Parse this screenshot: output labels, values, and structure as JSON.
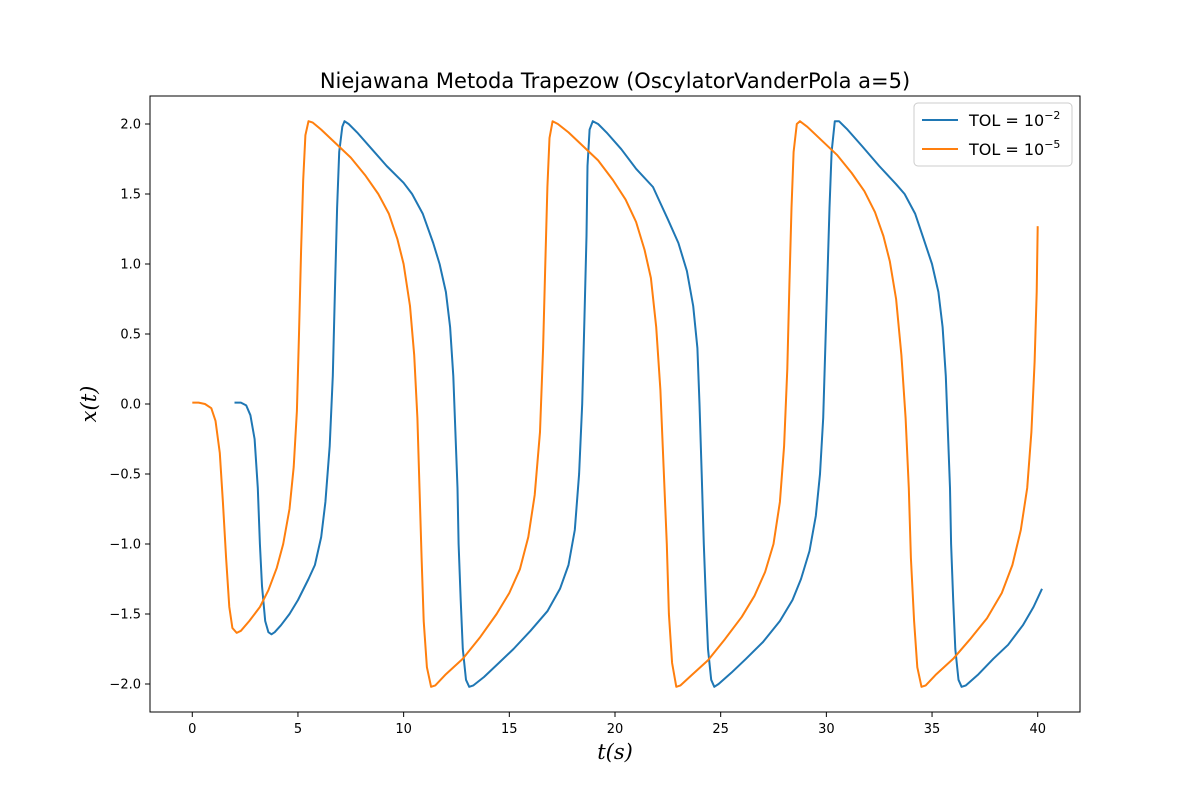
{
  "chart_data": {
    "type": "line",
    "title": "Niejawana Metoda Trapezow (OscylatorVanderPola a=5)",
    "xlabel": "t(s)",
    "ylabel": "x(t)",
    "xlim": [
      -2,
      42
    ],
    "ylim": [
      -2.2,
      2.2
    ],
    "xticks": [
      0,
      5,
      10,
      15,
      20,
      25,
      30,
      35,
      40
    ],
    "yticks": [
      -2.0,
      -1.5,
      -1.0,
      -0.5,
      0.0,
      0.5,
      1.0,
      1.5,
      2.0
    ],
    "xtick_labels": [
      "0",
      "5",
      "10",
      "15",
      "20",
      "25",
      "30",
      "35",
      "40"
    ],
    "ytick_labels": [
      "−2.0",
      "−1.5",
      "−1.0",
      "−0.5",
      "0.0",
      "0.5",
      "1.0",
      "1.5",
      "2.0"
    ],
    "grid": false,
    "legend_position": "top-right",
    "series": [
      {
        "name": "TOL = 10^-2",
        "name_base": "TOL = 10",
        "name_exp": "−2",
        "color": "#1f77b4",
        "points": [
          [
            2.0,
            0.01
          ],
          [
            2.3,
            0.01
          ],
          [
            2.55,
            -0.01
          ],
          [
            2.75,
            -0.08
          ],
          [
            2.95,
            -0.25
          ],
          [
            3.1,
            -0.6
          ],
          [
            3.2,
            -1.0
          ],
          [
            3.3,
            -1.3
          ],
          [
            3.45,
            -1.55
          ],
          [
            3.6,
            -1.63
          ],
          [
            3.75,
            -1.645
          ],
          [
            3.9,
            -1.63
          ],
          [
            4.2,
            -1.58
          ],
          [
            4.6,
            -1.5
          ],
          [
            5.0,
            -1.4
          ],
          [
            5.5,
            -1.25
          ],
          [
            5.8,
            -1.15
          ],
          [
            6.1,
            -0.95
          ],
          [
            6.3,
            -0.7
          ],
          [
            6.5,
            -0.3
          ],
          [
            6.65,
            0.2
          ],
          [
            6.75,
            0.8
          ],
          [
            6.85,
            1.4
          ],
          [
            6.95,
            1.8
          ],
          [
            7.1,
            1.98
          ],
          [
            7.2,
            2.02
          ],
          [
            7.4,
            2.0
          ],
          [
            7.8,
            1.94
          ],
          [
            8.5,
            1.82
          ],
          [
            9.2,
            1.7
          ],
          [
            10.0,
            1.58
          ],
          [
            10.4,
            1.5
          ],
          [
            10.9,
            1.36
          ],
          [
            11.4,
            1.15
          ],
          [
            11.7,
            1.0
          ],
          [
            12.0,
            0.8
          ],
          [
            12.2,
            0.55
          ],
          [
            12.35,
            0.2
          ],
          [
            12.45,
            -0.2
          ],
          [
            12.55,
            -0.6
          ],
          [
            12.6,
            -1.0
          ],
          [
            12.7,
            -1.4
          ],
          [
            12.8,
            -1.75
          ],
          [
            12.95,
            -1.97
          ],
          [
            13.1,
            -2.02
          ],
          [
            13.3,
            -2.01
          ],
          [
            13.8,
            -1.95
          ],
          [
            14.5,
            -1.85
          ],
          [
            15.2,
            -1.75
          ],
          [
            16.0,
            -1.62
          ],
          [
            16.8,
            -1.48
          ],
          [
            17.4,
            -1.32
          ],
          [
            17.8,
            -1.15
          ],
          [
            18.1,
            -0.9
          ],
          [
            18.3,
            -0.5
          ],
          [
            18.45,
            0.0
          ],
          [
            18.55,
            0.6
          ],
          [
            18.65,
            1.2
          ],
          [
            18.7,
            1.7
          ],
          [
            18.8,
            1.96
          ],
          [
            18.95,
            2.02
          ],
          [
            19.2,
            2.0
          ],
          [
            19.6,
            1.94
          ],
          [
            20.3,
            1.82
          ],
          [
            21.0,
            1.68
          ],
          [
            21.8,
            1.55
          ],
          [
            22.1,
            1.45
          ],
          [
            22.5,
            1.32
          ],
          [
            23.0,
            1.15
          ],
          [
            23.4,
            0.95
          ],
          [
            23.7,
            0.7
          ],
          [
            23.9,
            0.4
          ],
          [
            24.0,
            0.0
          ],
          [
            24.1,
            -0.5
          ],
          [
            24.2,
            -1.0
          ],
          [
            24.3,
            -1.4
          ],
          [
            24.4,
            -1.75
          ],
          [
            24.55,
            -1.97
          ],
          [
            24.7,
            -2.02
          ],
          [
            24.9,
            -2.0
          ],
          [
            25.5,
            -1.92
          ],
          [
            26.2,
            -1.82
          ],
          [
            27.0,
            -1.7
          ],
          [
            27.8,
            -1.55
          ],
          [
            28.4,
            -1.4
          ],
          [
            28.8,
            -1.25
          ],
          [
            29.2,
            -1.05
          ],
          [
            29.5,
            -0.8
          ],
          [
            29.7,
            -0.5
          ],
          [
            29.85,
            -0.1
          ],
          [
            29.95,
            0.4
          ],
          [
            30.05,
            0.9
          ],
          [
            30.15,
            1.4
          ],
          [
            30.25,
            1.8
          ],
          [
            30.4,
            2.02
          ],
          [
            30.6,
            2.02
          ],
          [
            31.0,
            1.96
          ],
          [
            31.7,
            1.84
          ],
          [
            32.5,
            1.7
          ],
          [
            33.3,
            1.57
          ],
          [
            33.7,
            1.5
          ],
          [
            34.2,
            1.36
          ],
          [
            34.6,
            1.18
          ],
          [
            35.0,
            1.0
          ],
          [
            35.3,
            0.8
          ],
          [
            35.5,
            0.55
          ],
          [
            35.65,
            0.2
          ],
          [
            35.75,
            -0.2
          ],
          [
            35.85,
            -0.6
          ],
          [
            35.9,
            -1.0
          ],
          [
            36.0,
            -1.4
          ],
          [
            36.1,
            -1.75
          ],
          [
            36.25,
            -1.97
          ],
          [
            36.4,
            -2.02
          ],
          [
            36.6,
            -2.01
          ],
          [
            37.2,
            -1.93
          ],
          [
            37.9,
            -1.82
          ],
          [
            38.6,
            -1.72
          ],
          [
            39.3,
            -1.58
          ],
          [
            39.8,
            -1.45
          ],
          [
            40.2,
            -1.32
          ]
        ]
      },
      {
        "name": "TOL = 10^-5",
        "name_base": "TOL = 10",
        "name_exp": "−5",
        "color": "#ff7f0e",
        "points": [
          [
            0.0,
            0.01
          ],
          [
            0.3,
            0.01
          ],
          [
            0.6,
            0.0
          ],
          [
            0.9,
            -0.03
          ],
          [
            1.1,
            -0.12
          ],
          [
            1.3,
            -0.35
          ],
          [
            1.45,
            -0.7
          ],
          [
            1.6,
            -1.1
          ],
          [
            1.75,
            -1.45
          ],
          [
            1.9,
            -1.6
          ],
          [
            2.1,
            -1.635
          ],
          [
            2.3,
            -1.62
          ],
          [
            2.7,
            -1.55
          ],
          [
            3.2,
            -1.45
          ],
          [
            3.6,
            -1.33
          ],
          [
            4.0,
            -1.17
          ],
          [
            4.3,
            -1.0
          ],
          [
            4.6,
            -0.75
          ],
          [
            4.8,
            -0.45
          ],
          [
            4.95,
            -0.05
          ],
          [
            5.05,
            0.5
          ],
          [
            5.15,
            1.1
          ],
          [
            5.25,
            1.6
          ],
          [
            5.35,
            1.92
          ],
          [
            5.5,
            2.02
          ],
          [
            5.7,
            2.01
          ],
          [
            6.1,
            1.96
          ],
          [
            6.8,
            1.86
          ],
          [
            7.5,
            1.76
          ],
          [
            8.2,
            1.63
          ],
          [
            8.8,
            1.5
          ],
          [
            9.3,
            1.36
          ],
          [
            9.7,
            1.18
          ],
          [
            10.0,
            1.0
          ],
          [
            10.3,
            0.7
          ],
          [
            10.5,
            0.35
          ],
          [
            10.65,
            -0.1
          ],
          [
            10.75,
            -0.6
          ],
          [
            10.85,
            -1.1
          ],
          [
            10.95,
            -1.55
          ],
          [
            11.1,
            -1.88
          ],
          [
            11.3,
            -2.02
          ],
          [
            11.5,
            -2.01
          ],
          [
            12.0,
            -1.93
          ],
          [
            12.8,
            -1.82
          ],
          [
            13.6,
            -1.67
          ],
          [
            14.4,
            -1.5
          ],
          [
            15.0,
            -1.35
          ],
          [
            15.5,
            -1.18
          ],
          [
            15.9,
            -0.95
          ],
          [
            16.2,
            -0.65
          ],
          [
            16.45,
            -0.2
          ],
          [
            16.6,
            0.4
          ],
          [
            16.7,
            1.0
          ],
          [
            16.8,
            1.55
          ],
          [
            16.9,
            1.9
          ],
          [
            17.05,
            2.02
          ],
          [
            17.3,
            2.0
          ],
          [
            17.8,
            1.94
          ],
          [
            18.5,
            1.84
          ],
          [
            19.2,
            1.74
          ],
          [
            19.9,
            1.6
          ],
          [
            20.5,
            1.46
          ],
          [
            21.0,
            1.3
          ],
          [
            21.4,
            1.1
          ],
          [
            21.7,
            0.9
          ],
          [
            21.95,
            0.55
          ],
          [
            22.15,
            0.1
          ],
          [
            22.3,
            -0.45
          ],
          [
            22.45,
            -1.0
          ],
          [
            22.55,
            -1.5
          ],
          [
            22.7,
            -1.85
          ],
          [
            22.9,
            -2.02
          ],
          [
            23.1,
            -2.01
          ],
          [
            23.6,
            -1.94
          ],
          [
            24.4,
            -1.83
          ],
          [
            25.2,
            -1.68
          ],
          [
            26.0,
            -1.52
          ],
          [
            26.6,
            -1.37
          ],
          [
            27.1,
            -1.2
          ],
          [
            27.5,
            -1.0
          ],
          [
            27.8,
            -0.7
          ],
          [
            28.0,
            -0.3
          ],
          [
            28.15,
            0.25
          ],
          [
            28.25,
            0.85
          ],
          [
            28.35,
            1.4
          ],
          [
            28.45,
            1.8
          ],
          [
            28.6,
            2.0
          ],
          [
            28.75,
            2.02
          ],
          [
            29.1,
            1.98
          ],
          [
            29.8,
            1.88
          ],
          [
            30.5,
            1.78
          ],
          [
            31.2,
            1.65
          ],
          [
            31.8,
            1.52
          ],
          [
            32.3,
            1.37
          ],
          [
            32.7,
            1.2
          ],
          [
            33.0,
            1.02
          ],
          [
            33.3,
            0.75
          ],
          [
            33.55,
            0.35
          ],
          [
            33.75,
            -0.1
          ],
          [
            33.9,
            -0.6
          ],
          [
            34.0,
            -1.1
          ],
          [
            34.15,
            -1.55
          ],
          [
            34.3,
            -1.88
          ],
          [
            34.5,
            -2.02
          ],
          [
            34.7,
            -2.01
          ],
          [
            35.2,
            -1.93
          ],
          [
            36.0,
            -1.82
          ],
          [
            36.8,
            -1.68
          ],
          [
            37.6,
            -1.53
          ],
          [
            38.3,
            -1.35
          ],
          [
            38.8,
            -1.15
          ],
          [
            39.2,
            -0.9
          ],
          [
            39.5,
            -0.6
          ],
          [
            39.7,
            -0.2
          ],
          [
            39.85,
            0.3
          ],
          [
            39.95,
            0.8
          ],
          [
            40.0,
            1.27
          ]
        ]
      }
    ]
  }
}
